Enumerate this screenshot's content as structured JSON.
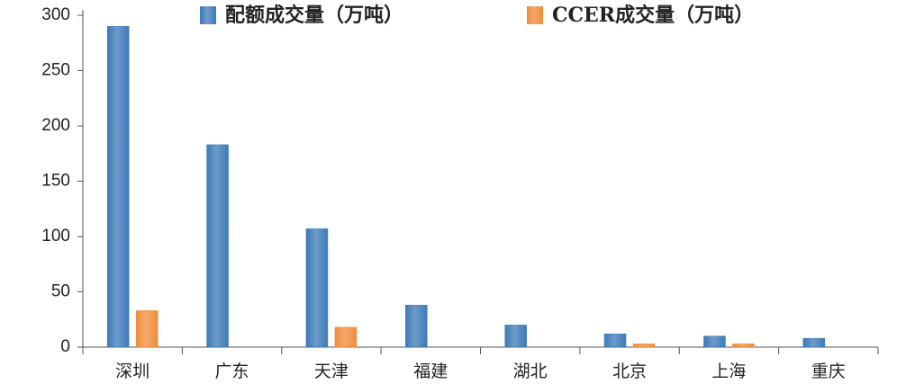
{
  "chart_data": {
    "type": "bar",
    "categories": [
      "深圳",
      "广东",
      "天津",
      "福建",
      "湖北",
      "北京",
      "上海",
      "重庆"
    ],
    "series": [
      {
        "name": "配额成交量（万吨）",
        "color": "#3d7ab8",
        "values": [
          290,
          183,
          107,
          38,
          20,
          12,
          10,
          8
        ]
      },
      {
        "name": "CCER成交量（万吨）",
        "color": "#f08c3a",
        "values": [
          33,
          0,
          18,
          0,
          0,
          3,
          3,
          0
        ]
      }
    ],
    "ylim": [
      0,
      300
    ],
    "yticks": [
      0,
      50,
      100,
      150,
      200,
      250,
      300
    ],
    "grid": false
  }
}
